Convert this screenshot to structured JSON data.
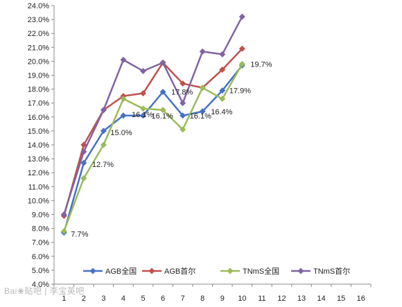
{
  "chart_data": {
    "type": "line",
    "x": [
      1,
      2,
      3,
      4,
      5,
      6,
      7,
      8,
      9,
      10
    ],
    "x_ticks": [
      "1",
      "2",
      "3",
      "4",
      "5",
      "6",
      "7",
      "8",
      "9",
      "10",
      "11",
      "12",
      "13",
      "14",
      "15",
      "16"
    ],
    "xlim": [
      1,
      16
    ],
    "ylim": [
      4.0,
      24.0
    ],
    "y_ticks": [
      "4.0%",
      "5.0%",
      "6.0%",
      "7.0%",
      "8.0%",
      "9.0%",
      "10.0%",
      "11.0%",
      "12.0%",
      "13.0%",
      "14.0%",
      "15.0%",
      "16.0%",
      "17.0%",
      "18.0%",
      "19.0%",
      "20.0%",
      "21.0%",
      "22.0%",
      "23.0%",
      "24.0%"
    ],
    "grid": false,
    "legend": "bottom",
    "title": "",
    "xlabel": "",
    "ylabel": "",
    "series": [
      {
        "name": "AGB全国",
        "color": "#4472C4",
        "marker": "diamond",
        "values": [
          7.7,
          12.7,
          15.0,
          16.1,
          16.1,
          17.8,
          16.1,
          16.4,
          17.9,
          19.7
        ]
      },
      {
        "name": "AGB首尔",
        "color": "#C0504D",
        "marker": "diamond",
        "values": [
          8.9,
          14.0,
          16.5,
          17.5,
          17.7,
          19.9,
          18.4,
          18.1,
          19.4,
          20.9
        ]
      },
      {
        "name": "TNmS全国",
        "color": "#9BBB59",
        "marker": "diamond",
        "values": [
          7.8,
          11.6,
          14.0,
          17.3,
          16.6,
          16.5,
          15.1,
          18.1,
          17.3,
          19.8
        ]
      },
      {
        "name": "TNmS首尔",
        "color": "#8064A2",
        "marker": "diamond",
        "values": [
          9.0,
          13.5,
          16.5,
          20.1,
          19.3,
          19.9,
          17.0,
          20.7,
          20.5,
          23.2
        ]
      }
    ],
    "data_labels": [
      {
        "series": "AGB全国",
        "x": 1,
        "y": 7.7,
        "text": "7.7%"
      },
      {
        "series": "AGB全国",
        "x": 2,
        "y": 12.7,
        "text": "12.7%"
      },
      {
        "series": "AGB全国",
        "x": 3,
        "y": 15.0,
        "text": "15.0%"
      },
      {
        "series": "AGB全国",
        "x": 4,
        "y": 16.1,
        "text": "16.1%"
      },
      {
        "series": "AGB全国",
        "x": 5,
        "y": 16.1,
        "text": "16.1%"
      },
      {
        "series": "AGB全国",
        "x": 6,
        "y": 17.8,
        "text": "17.8%"
      },
      {
        "series": "AGB全国",
        "x": 7,
        "y": 16.1,
        "text": "16.1%"
      },
      {
        "series": "AGB全国",
        "x": 8,
        "y": 16.4,
        "text": "16.4%"
      },
      {
        "series": "AGB全国",
        "x": 9,
        "y": 17.9,
        "text": "17.9%"
      },
      {
        "series": "AGB全国",
        "x": 10,
        "y": 19.7,
        "text": "19.7%"
      }
    ]
  },
  "watermark": "Bai 百度 贴吧 | 李宝英吧",
  "watermark_logo_text": "Bai",
  "watermark_tail_text": "贴吧 | 李宝英吧"
}
